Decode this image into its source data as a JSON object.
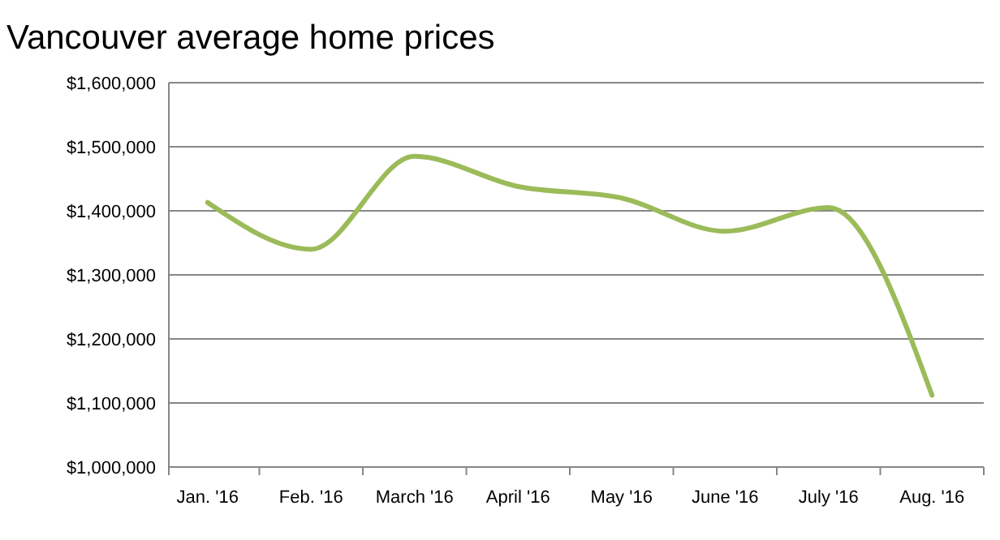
{
  "chart_data": {
    "type": "line",
    "title": "Vancouver average home prices",
    "categories": [
      "Jan. '16",
      "Feb. '16",
      "March '16",
      "April '16",
      "May '16",
      "June '16",
      "July '16",
      "Aug. '16"
    ],
    "series": [
      {
        "color": "#9bbb59",
        "values": [
          1413000,
          1340000,
          1485000,
          1438000,
          1420000,
          1368000,
          1405000,
          1112000
        ]
      }
    ],
    "ylim": [
      1000000,
      1600000
    ],
    "yticks": [
      {
        "value": 1000000,
        "label": "$1,000,000"
      },
      {
        "value": 1100000,
        "label": "$1,100,000"
      },
      {
        "value": 1200000,
        "label": "$1,200,000"
      },
      {
        "value": 1300000,
        "label": "$1,300,000"
      },
      {
        "value": 1400000,
        "label": "$1,400,000"
      },
      {
        "value": 1500000,
        "label": "$1,500,000"
      },
      {
        "value": 1600000,
        "label": "$1,600,000"
      }
    ],
    "grid": "y",
    "marker": "none",
    "line_style": "solid"
  }
}
